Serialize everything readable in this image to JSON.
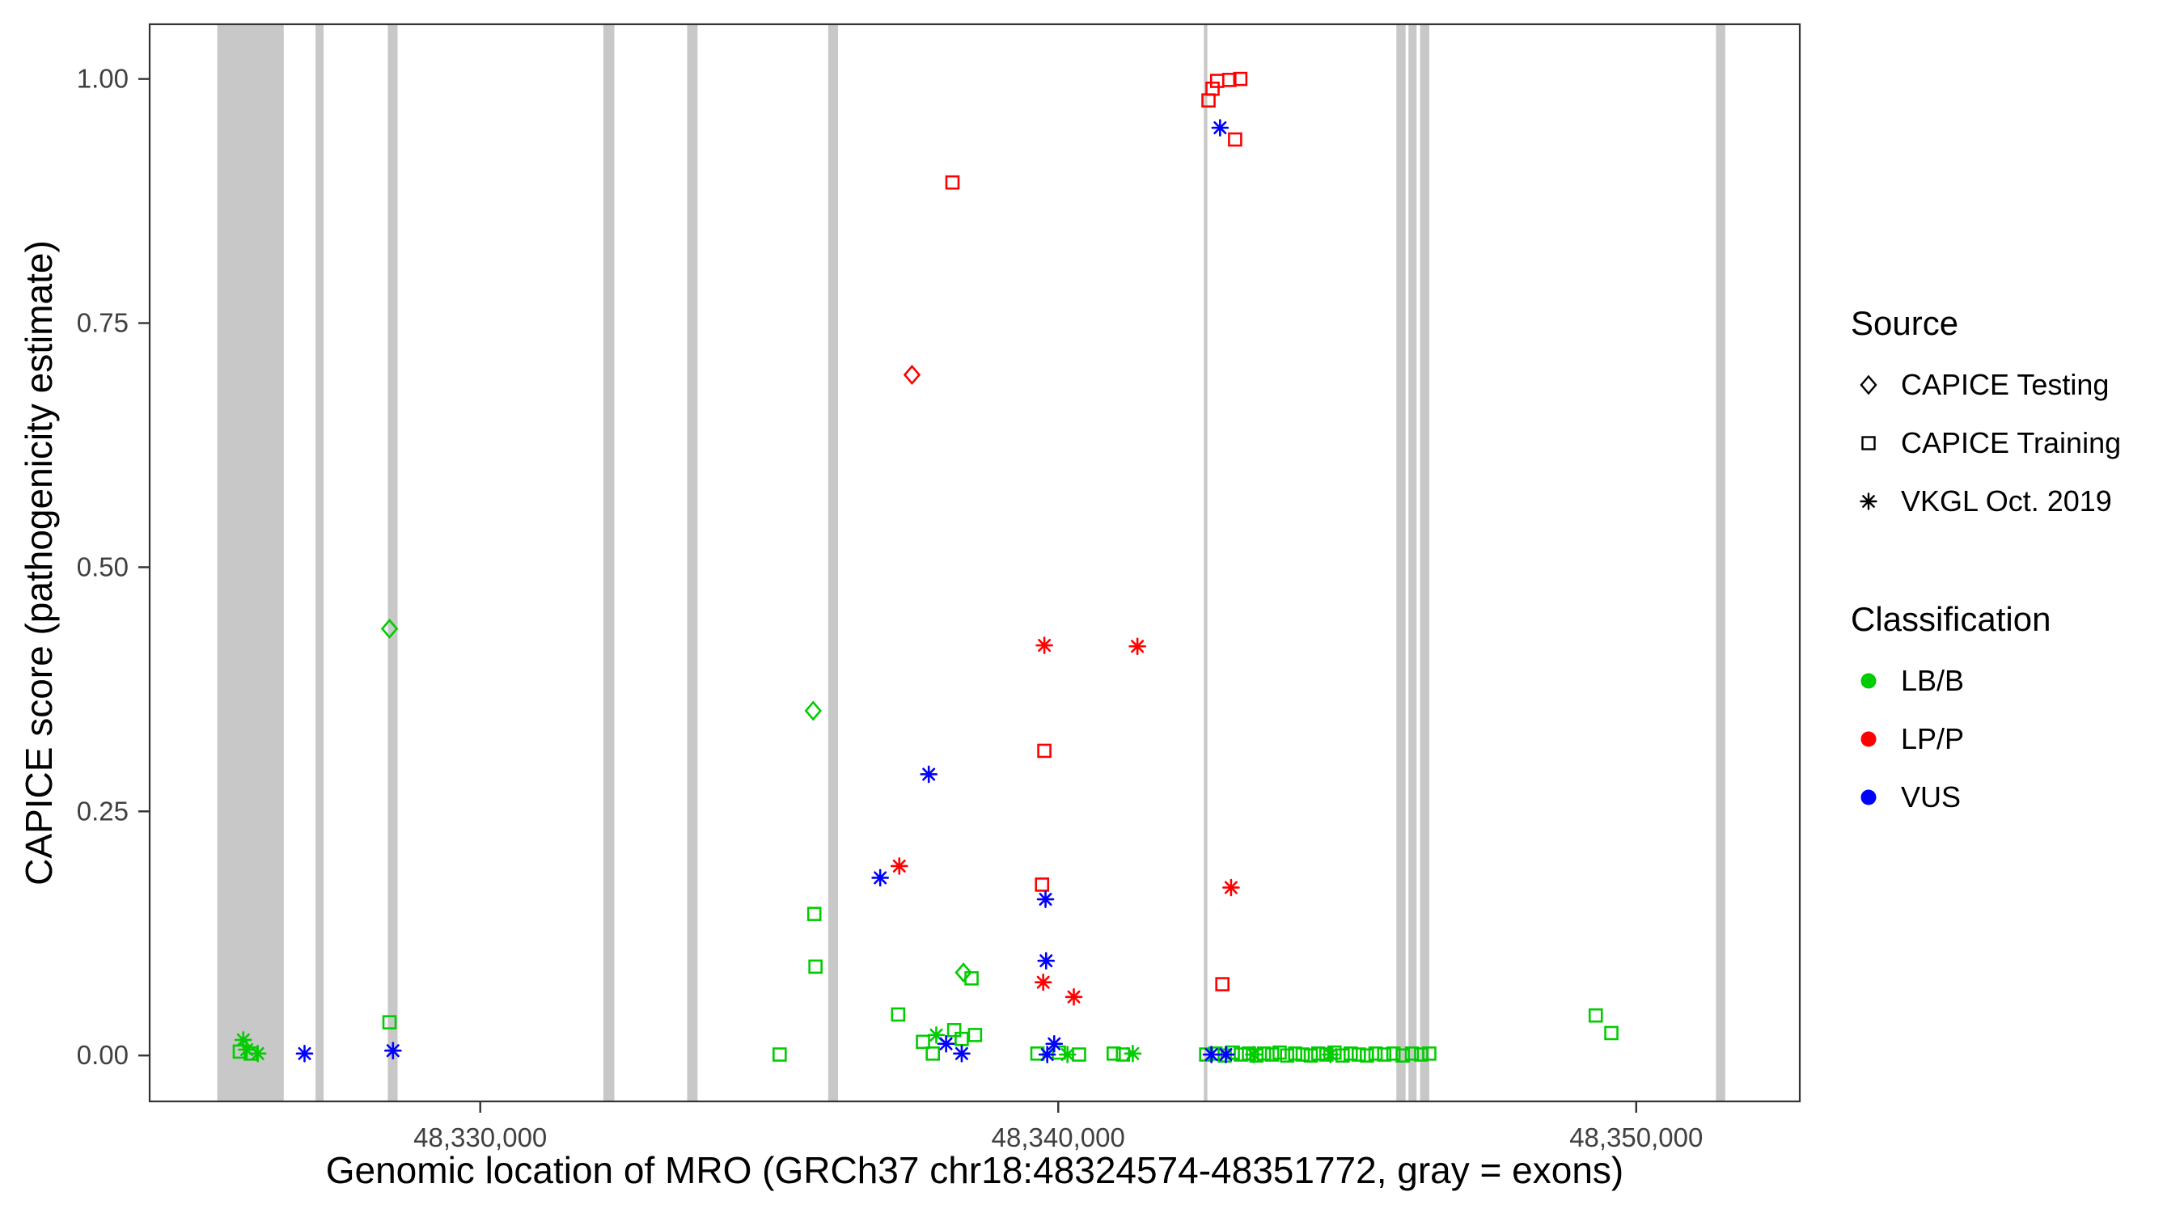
{
  "figure": {
    "background": "#FFFFFF"
  },
  "chart_data": {
    "type": "scatter",
    "title": "",
    "xlabel": "Genomic location of MRO (GRCh37 chr18:48324574-48351772, gray = exons)",
    "ylabel": "CAPICE score (pathogenicity estimate)",
    "xlim": [
      48324280,
      48352830
    ],
    "ylim": [
      -0.047,
      1.056
    ],
    "grid": false,
    "legend_position": "right",
    "x_ticks": [
      {
        "value": 48330000,
        "label": "48,330,000"
      },
      {
        "value": 48340000,
        "label": "48,340,000"
      },
      {
        "value": 48350000,
        "label": "48,350,000"
      }
    ],
    "y_ticks": [
      {
        "value": 0.0,
        "label": "0.00"
      },
      {
        "value": 0.25,
        "label": "0.25"
      },
      {
        "value": 0.5,
        "label": "0.50"
      },
      {
        "value": 0.75,
        "label": "0.75"
      },
      {
        "value": 1.0,
        "label": "1.00"
      }
    ],
    "colors": {
      "LB/B": "#00CC00",
      "LP/P": "#FF0000",
      "VUS": "#0000FF",
      "exon": "#C8C8C8",
      "axis_text": "#404040",
      "panel_border": "#333333"
    },
    "markers": {
      "CAPICE Testing": "diamond",
      "CAPICE Training": "square",
      "VKGL Oct. 2019": "asterisk"
    },
    "exons": [
      [
        48325450,
        48326600
      ],
      [
        48327150,
        48327290
      ],
      [
        48328400,
        48328570
      ],
      [
        48332130,
        48332320
      ],
      [
        48333580,
        48333760
      ],
      [
        48336020,
        48336190
      ],
      [
        48342520,
        48342580
      ],
      [
        48345850,
        48346010
      ],
      [
        48346060,
        48346200
      ],
      [
        48346260,
        48346420
      ],
      [
        48351380,
        48351540
      ]
    ],
    "points_columns": [
      "genomic_position",
      "capice_score",
      "source",
      "classification"
    ],
    "points": [
      [
        48325840,
        0.004,
        "CAPICE Training",
        "LB/B"
      ],
      [
        48326030,
        0.002,
        "CAPICE Training",
        "LB/B"
      ],
      [
        48328430,
        0.034,
        "CAPICE Training",
        "LB/B"
      ],
      [
        48335180,
        0.001,
        "CAPICE Training",
        "LB/B"
      ],
      [
        48335780,
        0.145,
        "CAPICE Training",
        "LB/B"
      ],
      [
        48335800,
        0.091,
        "CAPICE Training",
        "LB/B"
      ],
      [
        48337230,
        0.042,
        "CAPICE Training",
        "LB/B"
      ],
      [
        48337660,
        0.014,
        "CAPICE Training",
        "LB/B"
      ],
      [
        48337830,
        0.002,
        "CAPICE Training",
        "LB/B"
      ],
      [
        48338200,
        0.026,
        "CAPICE Training",
        "LB/B"
      ],
      [
        48338330,
        0.017,
        "CAPICE Training",
        "LB/B"
      ],
      [
        48338500,
        0.079,
        "CAPICE Training",
        "LB/B"
      ],
      [
        48338560,
        0.021,
        "CAPICE Training",
        "LB/B"
      ],
      [
        48339640,
        0.002,
        "CAPICE Training",
        "LB/B"
      ],
      [
        48340010,
        0.003,
        "CAPICE Training",
        "LB/B"
      ],
      [
        48340360,
        0.001,
        "CAPICE Training",
        "LB/B"
      ],
      [
        48340960,
        0.002,
        "CAPICE Training",
        "LB/B"
      ],
      [
        48341120,
        0.001,
        "CAPICE Training",
        "LB/B"
      ],
      [
        48342560,
        0.001,
        "CAPICE Training",
        "LB/B"
      ],
      [
        48342720,
        0.002,
        "CAPICE Training",
        "LB/B"
      ],
      [
        48342880,
        0.0,
        "CAPICE Training",
        "LB/B"
      ],
      [
        48343020,
        0.003,
        "CAPICE Training",
        "LB/B"
      ],
      [
        48343160,
        0.001,
        "CAPICE Training",
        "LB/B"
      ],
      [
        48343300,
        0.002,
        "CAPICE Training",
        "LB/B"
      ],
      [
        48343430,
        0.0,
        "CAPICE Training",
        "LB/B"
      ],
      [
        48343560,
        0.002,
        "CAPICE Training",
        "LB/B"
      ],
      [
        48343700,
        0.001,
        "CAPICE Training",
        "LB/B"
      ],
      [
        48343830,
        0.003,
        "CAPICE Training",
        "LB/B"
      ],
      [
        48343960,
        0.0,
        "CAPICE Training",
        "LB/B"
      ],
      [
        48344100,
        0.002,
        "CAPICE Training",
        "LB/B"
      ],
      [
        48344230,
        0.001,
        "CAPICE Training",
        "LB/B"
      ],
      [
        48344370,
        0.0,
        "CAPICE Training",
        "LB/B"
      ],
      [
        48344500,
        0.002,
        "CAPICE Training",
        "LB/B"
      ],
      [
        48344640,
        0.001,
        "CAPICE Training",
        "LB/B"
      ],
      [
        48344780,
        0.003,
        "CAPICE Training",
        "LB/B"
      ],
      [
        48344920,
        0.0,
        "CAPICE Training",
        "LB/B"
      ],
      [
        48345060,
        0.002,
        "CAPICE Training",
        "LB/B"
      ],
      [
        48345200,
        0.001,
        "CAPICE Training",
        "LB/B"
      ],
      [
        48345340,
        0.0,
        "CAPICE Training",
        "LB/B"
      ],
      [
        48345490,
        0.002,
        "CAPICE Training",
        "LB/B"
      ],
      [
        48345640,
        0.001,
        "CAPICE Training",
        "LB/B"
      ],
      [
        48345800,
        0.002,
        "CAPICE Training",
        "LB/B"
      ],
      [
        48345960,
        0.0,
        "CAPICE Training",
        "LB/B"
      ],
      [
        48346120,
        0.002,
        "CAPICE Training",
        "LB/B"
      ],
      [
        48346280,
        0.001,
        "CAPICE Training",
        "LB/B"
      ],
      [
        48346420,
        0.002,
        "CAPICE Training",
        "LB/B"
      ],
      [
        48349300,
        0.041,
        "CAPICE Training",
        "LB/B"
      ],
      [
        48349570,
        0.023,
        "CAPICE Training",
        "LB/B"
      ],
      [
        48338170,
        0.894,
        "CAPICE Training",
        "LP/P"
      ],
      [
        48339760,
        0.312,
        "CAPICE Training",
        "LP/P"
      ],
      [
        48339720,
        0.175,
        "CAPICE Training",
        "LP/P"
      ],
      [
        48342840,
        0.073,
        "CAPICE Training",
        "LP/P"
      ],
      [
        48342600,
        0.978,
        "CAPICE Training",
        "LP/P"
      ],
      [
        48342670,
        0.99,
        "CAPICE Training",
        "LP/P"
      ],
      [
        48342750,
        0.998,
        "CAPICE Training",
        "LP/P"
      ],
      [
        48342960,
        0.999,
        "CAPICE Training",
        "LP/P"
      ],
      [
        48343150,
        1.0,
        "CAPICE Training",
        "LP/P"
      ],
      [
        48343060,
        0.938,
        "CAPICE Training",
        "LP/P"
      ],
      [
        48328430,
        0.437,
        "CAPICE Testing",
        "LB/B"
      ],
      [
        48335760,
        0.353,
        "CAPICE Testing",
        "LB/B"
      ],
      [
        48338360,
        0.085,
        "CAPICE Testing",
        "LB/B"
      ],
      [
        48337470,
        0.697,
        "CAPICE Testing",
        "LP/P"
      ],
      [
        48325900,
        0.016,
        "VKGL Oct. 2019",
        "LB/B"
      ],
      [
        48325960,
        0.006,
        "VKGL Oct. 2019",
        "LB/B"
      ],
      [
        48326150,
        0.002,
        "VKGL Oct. 2019",
        "LB/B"
      ],
      [
        48337890,
        0.021,
        "VKGL Oct. 2019",
        "LB/B"
      ],
      [
        48340160,
        0.001,
        "VKGL Oct. 2019",
        "LB/B"
      ],
      [
        48341290,
        0.002,
        "VKGL Oct. 2019",
        "LB/B"
      ],
      [
        48343380,
        0.001,
        "VKGL Oct. 2019",
        "LB/B"
      ],
      [
        48344710,
        0.001,
        "VKGL Oct. 2019",
        "LB/B"
      ],
      [
        48337250,
        0.194,
        "VKGL Oct. 2019",
        "LP/P"
      ],
      [
        48339760,
        0.42,
        "VKGL Oct. 2019",
        "LP/P"
      ],
      [
        48341370,
        0.419,
        "VKGL Oct. 2019",
        "LP/P"
      ],
      [
        48339740,
        0.075,
        "VKGL Oct. 2019",
        "LP/P"
      ],
      [
        48340270,
        0.06,
        "VKGL Oct. 2019",
        "LP/P"
      ],
      [
        48342990,
        0.172,
        "VKGL Oct. 2019",
        "LP/P"
      ],
      [
        48326960,
        0.002,
        "VKGL Oct. 2019",
        "VUS"
      ],
      [
        48328490,
        0.005,
        "VKGL Oct. 2019",
        "VUS"
      ],
      [
        48336920,
        0.182,
        "VKGL Oct. 2019",
        "VUS"
      ],
      [
        48337760,
        0.288,
        "VKGL Oct. 2019",
        "VUS"
      ],
      [
        48338060,
        0.012,
        "VKGL Oct. 2019",
        "VUS"
      ],
      [
        48338330,
        0.002,
        "VKGL Oct. 2019",
        "VUS"
      ],
      [
        48339780,
        0.16,
        "VKGL Oct. 2019",
        "VUS"
      ],
      [
        48339790,
        0.097,
        "VKGL Oct. 2019",
        "VUS"
      ],
      [
        48339930,
        0.012,
        "VKGL Oct. 2019",
        "VUS"
      ],
      [
        48339810,
        0.001,
        "VKGL Oct. 2019",
        "VUS"
      ],
      [
        48342800,
        0.95,
        "VKGL Oct. 2019",
        "VUS"
      ],
      [
        48342650,
        0.001,
        "VKGL Oct. 2019",
        "VUS"
      ],
      [
        48342900,
        0.001,
        "VKGL Oct. 2019",
        "VUS"
      ]
    ],
    "legend": {
      "source": {
        "title": "Source",
        "items": [
          {
            "label": "CAPICE Testing",
            "marker": "diamond"
          },
          {
            "label": "CAPICE Training",
            "marker": "square"
          },
          {
            "label": "VKGL Oct. 2019",
            "marker": "asterisk"
          }
        ]
      },
      "classification": {
        "title": "Classification",
        "items": [
          {
            "label": "LB/B",
            "color": "#00CC00"
          },
          {
            "label": "LP/P",
            "color": "#FF0000"
          },
          {
            "label": "VUS",
            "color": "#0000FF"
          }
        ]
      }
    }
  }
}
